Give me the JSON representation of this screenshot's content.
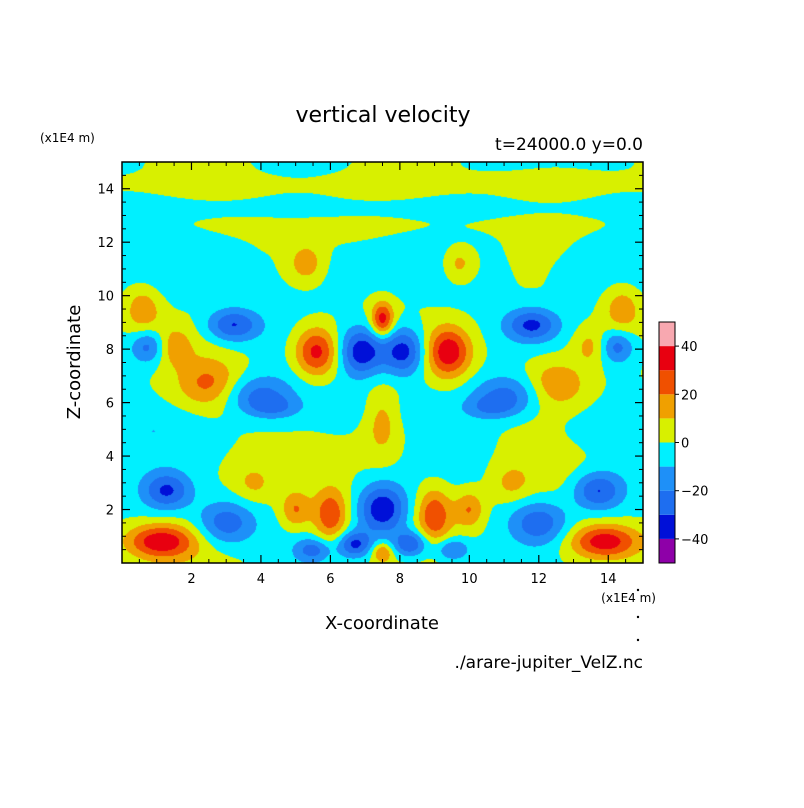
{
  "chart_data": {
    "type": "heatmap",
    "title": "vertical velocity",
    "subtitle": "t=24000.0 y=0.0",
    "xlabel": "X-coordinate",
    "ylabel": "Z-coordinate",
    "x_unit": "(x1E4 m)",
    "y_unit": "(x1E4 m)",
    "source_file": "./arare-jupiter_VelZ.nc",
    "xlim": [
      0,
      15
    ],
    "ylim": [
      0,
      15
    ],
    "x_ticks": [
      2,
      4,
      6,
      8,
      10,
      12,
      14
    ],
    "y_ticks": [
      2,
      4,
      6,
      8,
      10,
      12,
      14
    ],
    "colorbar": {
      "levels": [
        -50,
        -40,
        -30,
        -20,
        -10,
        0,
        10,
        20,
        30,
        40,
        50
      ],
      "tick_labels": [
        "40",
        "20",
        "0",
        "−20",
        "−40"
      ],
      "tick_values": [
        40,
        20,
        0,
        -20,
        -40
      ],
      "colors": [
        "#8e00a8",
        "#0010d8",
        "#1e6ef0",
        "#00f0ff",
        "#d8f000",
        "#f0a000",
        "#f05000",
        "#e80010",
        "#f8a8b0"
      ]
    },
    "background_level": 0,
    "features": [
      {
        "x": 7.5,
        "z": 14.2,
        "sx": 8.0,
        "sz": 0.3,
        "v": 5
      },
      {
        "x": 7.5,
        "z": 12.7,
        "sx": 8.0,
        "sz": 0.3,
        "v": 4
      },
      {
        "x": 7.5,
        "z": 13.2,
        "sx": 8.0,
        "sz": 0.25,
        "v": -6
      },
      {
        "x": 1.5,
        "z": 11.0,
        "sx": 1.3,
        "sz": 1.0,
        "v": -7
      },
      {
        "x": 13.5,
        "z": 11.0,
        "sx": 1.3,
        "sz": 1.0,
        "v": -7
      },
      {
        "x": 7.5,
        "z": 11.0,
        "sx": 1.6,
        "sz": 0.7,
        "v": -7
      },
      {
        "x": 5.3,
        "z": 11.2,
        "sx": 0.35,
        "sz": 0.5,
        "v": 18
      },
      {
        "x": 9.7,
        "z": 11.2,
        "sx": 0.35,
        "sz": 0.5,
        "v": 18
      },
      {
        "x": 7.5,
        "z": 9.1,
        "sx": 0.22,
        "sz": 0.45,
        "v": 36
      },
      {
        "x": 3.2,
        "z": 8.9,
        "sx": 0.55,
        "sz": 0.45,
        "v": -32
      },
      {
        "x": 11.8,
        "z": 8.9,
        "sx": 0.55,
        "sz": 0.45,
        "v": -32
      },
      {
        "x": 0.75,
        "z": 8.1,
        "sx": 0.35,
        "sz": 0.45,
        "v": -25
      },
      {
        "x": 14.25,
        "z": 8.1,
        "sx": 0.35,
        "sz": 0.45,
        "v": -25
      },
      {
        "x": 0.6,
        "z": 9.5,
        "sx": 0.4,
        "sz": 0.7,
        "v": 20
      },
      {
        "x": 14.4,
        "z": 9.5,
        "sx": 0.4,
        "sz": 0.7,
        "v": 20
      },
      {
        "x": 5.6,
        "z": 7.9,
        "sx": 0.45,
        "sz": 0.65,
        "v": 38
      },
      {
        "x": 9.4,
        "z": 7.9,
        "sx": 0.45,
        "sz": 0.65,
        "v": 38
      },
      {
        "x": 6.9,
        "z": 7.9,
        "sx": 0.45,
        "sz": 0.65,
        "v": -38
      },
      {
        "x": 8.1,
        "z": 7.9,
        "sx": 0.45,
        "sz": 0.65,
        "v": -38
      },
      {
        "x": 1.5,
        "z": 8.1,
        "sx": 0.35,
        "sz": 0.5,
        "v": 15
      },
      {
        "x": 13.5,
        "z": 8.1,
        "sx": 0.35,
        "sz": 0.5,
        "v": 15
      },
      {
        "x": 2.5,
        "z": 6.7,
        "sx": 0.6,
        "sz": 0.6,
        "v": 20
      },
      {
        "x": 12.5,
        "z": 6.7,
        "sx": 0.6,
        "sz": 0.6,
        "v": 20
      },
      {
        "x": 3.9,
        "z": 6.3,
        "sx": 0.7,
        "sz": 0.5,
        "v": -22
      },
      {
        "x": 11.1,
        "z": 6.3,
        "sx": 0.7,
        "sz": 0.5,
        "v": -22
      },
      {
        "x": 4.4,
        "z": 5.8,
        "sx": 0.55,
        "sz": 0.3,
        "v": -15
      },
      {
        "x": 10.6,
        "z": 5.8,
        "sx": 0.55,
        "sz": 0.3,
        "v": -15
      },
      {
        "x": 7.5,
        "z": 5.2,
        "sx": 0.35,
        "sz": 0.9,
        "v": 14
      },
      {
        "x": 6.5,
        "z": 5.8,
        "sx": 0.6,
        "sz": 0.6,
        "v": -7
      },
      {
        "x": 8.5,
        "z": 5.8,
        "sx": 0.6,
        "sz": 0.6,
        "v": -7
      },
      {
        "x": 1.0,
        "z": 5.0,
        "sx": 1.2,
        "sz": 0.6,
        "v": -7
      },
      {
        "x": 14.0,
        "z": 5.0,
        "sx": 1.2,
        "sz": 0.6,
        "v": -7
      },
      {
        "x": 1.3,
        "z": 2.7,
        "sx": 0.5,
        "sz": 0.5,
        "v": -30
      },
      {
        "x": 13.7,
        "z": 2.7,
        "sx": 0.5,
        "sz": 0.5,
        "v": -30
      },
      {
        "x": 3.0,
        "z": 1.5,
        "sx": 0.6,
        "sz": 0.6,
        "v": -28
      },
      {
        "x": 12.0,
        "z": 1.5,
        "sx": 0.6,
        "sz": 0.6,
        "v": -28
      },
      {
        "x": 1.1,
        "z": 0.8,
        "sx": 0.7,
        "sz": 0.45,
        "v": 38
      },
      {
        "x": 13.9,
        "z": 0.8,
        "sx": 0.7,
        "sz": 0.45,
        "v": 38
      },
      {
        "x": 3.8,
        "z": 3.0,
        "sx": 0.4,
        "sz": 0.5,
        "v": 12
      },
      {
        "x": 11.2,
        "z": 3.0,
        "sx": 0.4,
        "sz": 0.5,
        "v": 12
      },
      {
        "x": 5.0,
        "z": 2.0,
        "sx": 0.3,
        "sz": 0.5,
        "v": 22
      },
      {
        "x": 10.0,
        "z": 2.0,
        "sx": 0.3,
        "sz": 0.5,
        "v": 22
      },
      {
        "x": 6.0,
        "z": 1.8,
        "sx": 0.35,
        "sz": 0.7,
        "v": 30
      },
      {
        "x": 9.0,
        "z": 1.8,
        "sx": 0.35,
        "sz": 0.7,
        "v": 30
      },
      {
        "x": 7.5,
        "z": 2.0,
        "sx": 0.5,
        "sz": 0.7,
        "v": -40
      },
      {
        "x": 6.7,
        "z": 0.7,
        "sx": 0.35,
        "sz": 0.35,
        "v": -32
      },
      {
        "x": 8.3,
        "z": 0.7,
        "sx": 0.35,
        "sz": 0.35,
        "v": -32
      },
      {
        "x": 7.5,
        "z": 0.4,
        "sx": 0.2,
        "sz": 0.25,
        "v": 22
      },
      {
        "x": 5.5,
        "z": 0.5,
        "sx": 0.35,
        "sz": 0.3,
        "v": -22
      },
      {
        "x": 9.5,
        "z": 0.5,
        "sx": 0.35,
        "sz": 0.3,
        "v": -22
      }
    ]
  }
}
